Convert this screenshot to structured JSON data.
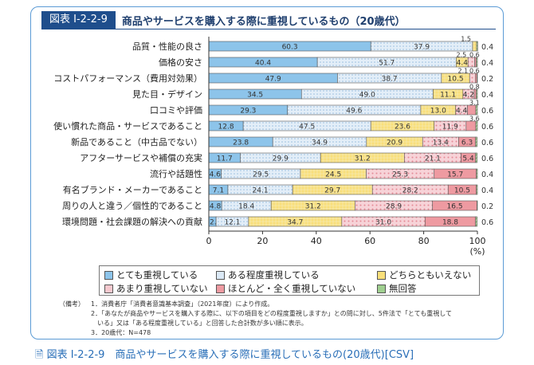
{
  "header": {
    "figure_no": "図表 I-2-2-9",
    "title": "商品やサービスを購入する際に重視しているもの（20歳代）"
  },
  "chart_data": {
    "type": "bar",
    "orientation": "horizontal",
    "stacked": true,
    "categories": [
      "品質・性能の良さ",
      "価格の安さ",
      "コストパフォーマンス（費用対効果）",
      "見た目・デザイン",
      "口コミや評価",
      "使い慣れた商品・サービスであること",
      "新品であること（中古品でない）",
      "アフターサービスや補償の充実",
      "流行や話題性",
      "有名ブランド・メーカーであること",
      "周りの人と違う／個性的であること",
      "環境問題・社会課題の解決への貢献"
    ],
    "series": [
      {
        "name": "とても重視している",
        "color": "#8dc4ea",
        "values": [
          60.3,
          40.4,
          47.9,
          34.5,
          29.3,
          12.8,
          23.8,
          11.7,
          4.6,
          7.1,
          4.8,
          2.7
        ]
      },
      {
        "name": "ある程度重視している",
        "color": "#dbe9f6",
        "values": [
          37.9,
          51.7,
          38.7,
          49.0,
          49.6,
          47.5,
          34.9,
          29.9,
          29.5,
          24.1,
          18.4,
          12.1
        ]
      },
      {
        "name": "どちらともいえない",
        "color": "#f9df7a",
        "values": [
          1.5,
          4.4,
          10.5,
          11.1,
          13.0,
          23.6,
          20.9,
          31.2,
          24.5,
          29.7,
          31.2,
          34.7
        ]
      },
      {
        "name": "あまり重視していない",
        "color": "#f6c9cf",
        "values": [
          0,
          2.5,
          2.1,
          4.2,
          4.4,
          11.9,
          13.4,
          21.1,
          25.3,
          28.2,
          28.9,
          31.0
        ]
      },
      {
        "name": "ほとんど・全く重視していない",
        "color": "#ee9aa1",
        "values": [
          0,
          0.6,
          0.6,
          0.8,
          3.1,
          3.6,
          6.3,
          5.4,
          15.7,
          10.5,
          16.5,
          18.8
        ]
      },
      {
        "name": "無回答",
        "color": "#9fcf8f",
        "values": [
          0.4,
          0.4,
          0.2,
          0.4,
          0.6,
          0.6,
          0.6,
          0.6,
          0.4,
          0.4,
          0.2,
          0.6
        ]
      }
    ],
    "xlim": [
      0,
      100
    ],
    "xticks": [
      0,
      20,
      40,
      60,
      80,
      100
    ],
    "xunit": "(%)",
    "legend": "bottom"
  },
  "notes": {
    "label": "（備考）",
    "items": [
      "1．消費者庁「消費者意識基本調査」（2021年度）により作成。",
      "2．「あなたが商品やサービスを購入する際に、以下の項目をどの程度重視しますか」との問に対し、5件法で「とても重視して",
      "　いる」又は「ある程度重視している」と回答した合計数が多い順に表示。",
      "3．20歳代：N=478"
    ]
  },
  "csv_link": "図表 I-2-2-9　商品やサービスを購入する際に重視しているもの(20歳代)[CSV]"
}
